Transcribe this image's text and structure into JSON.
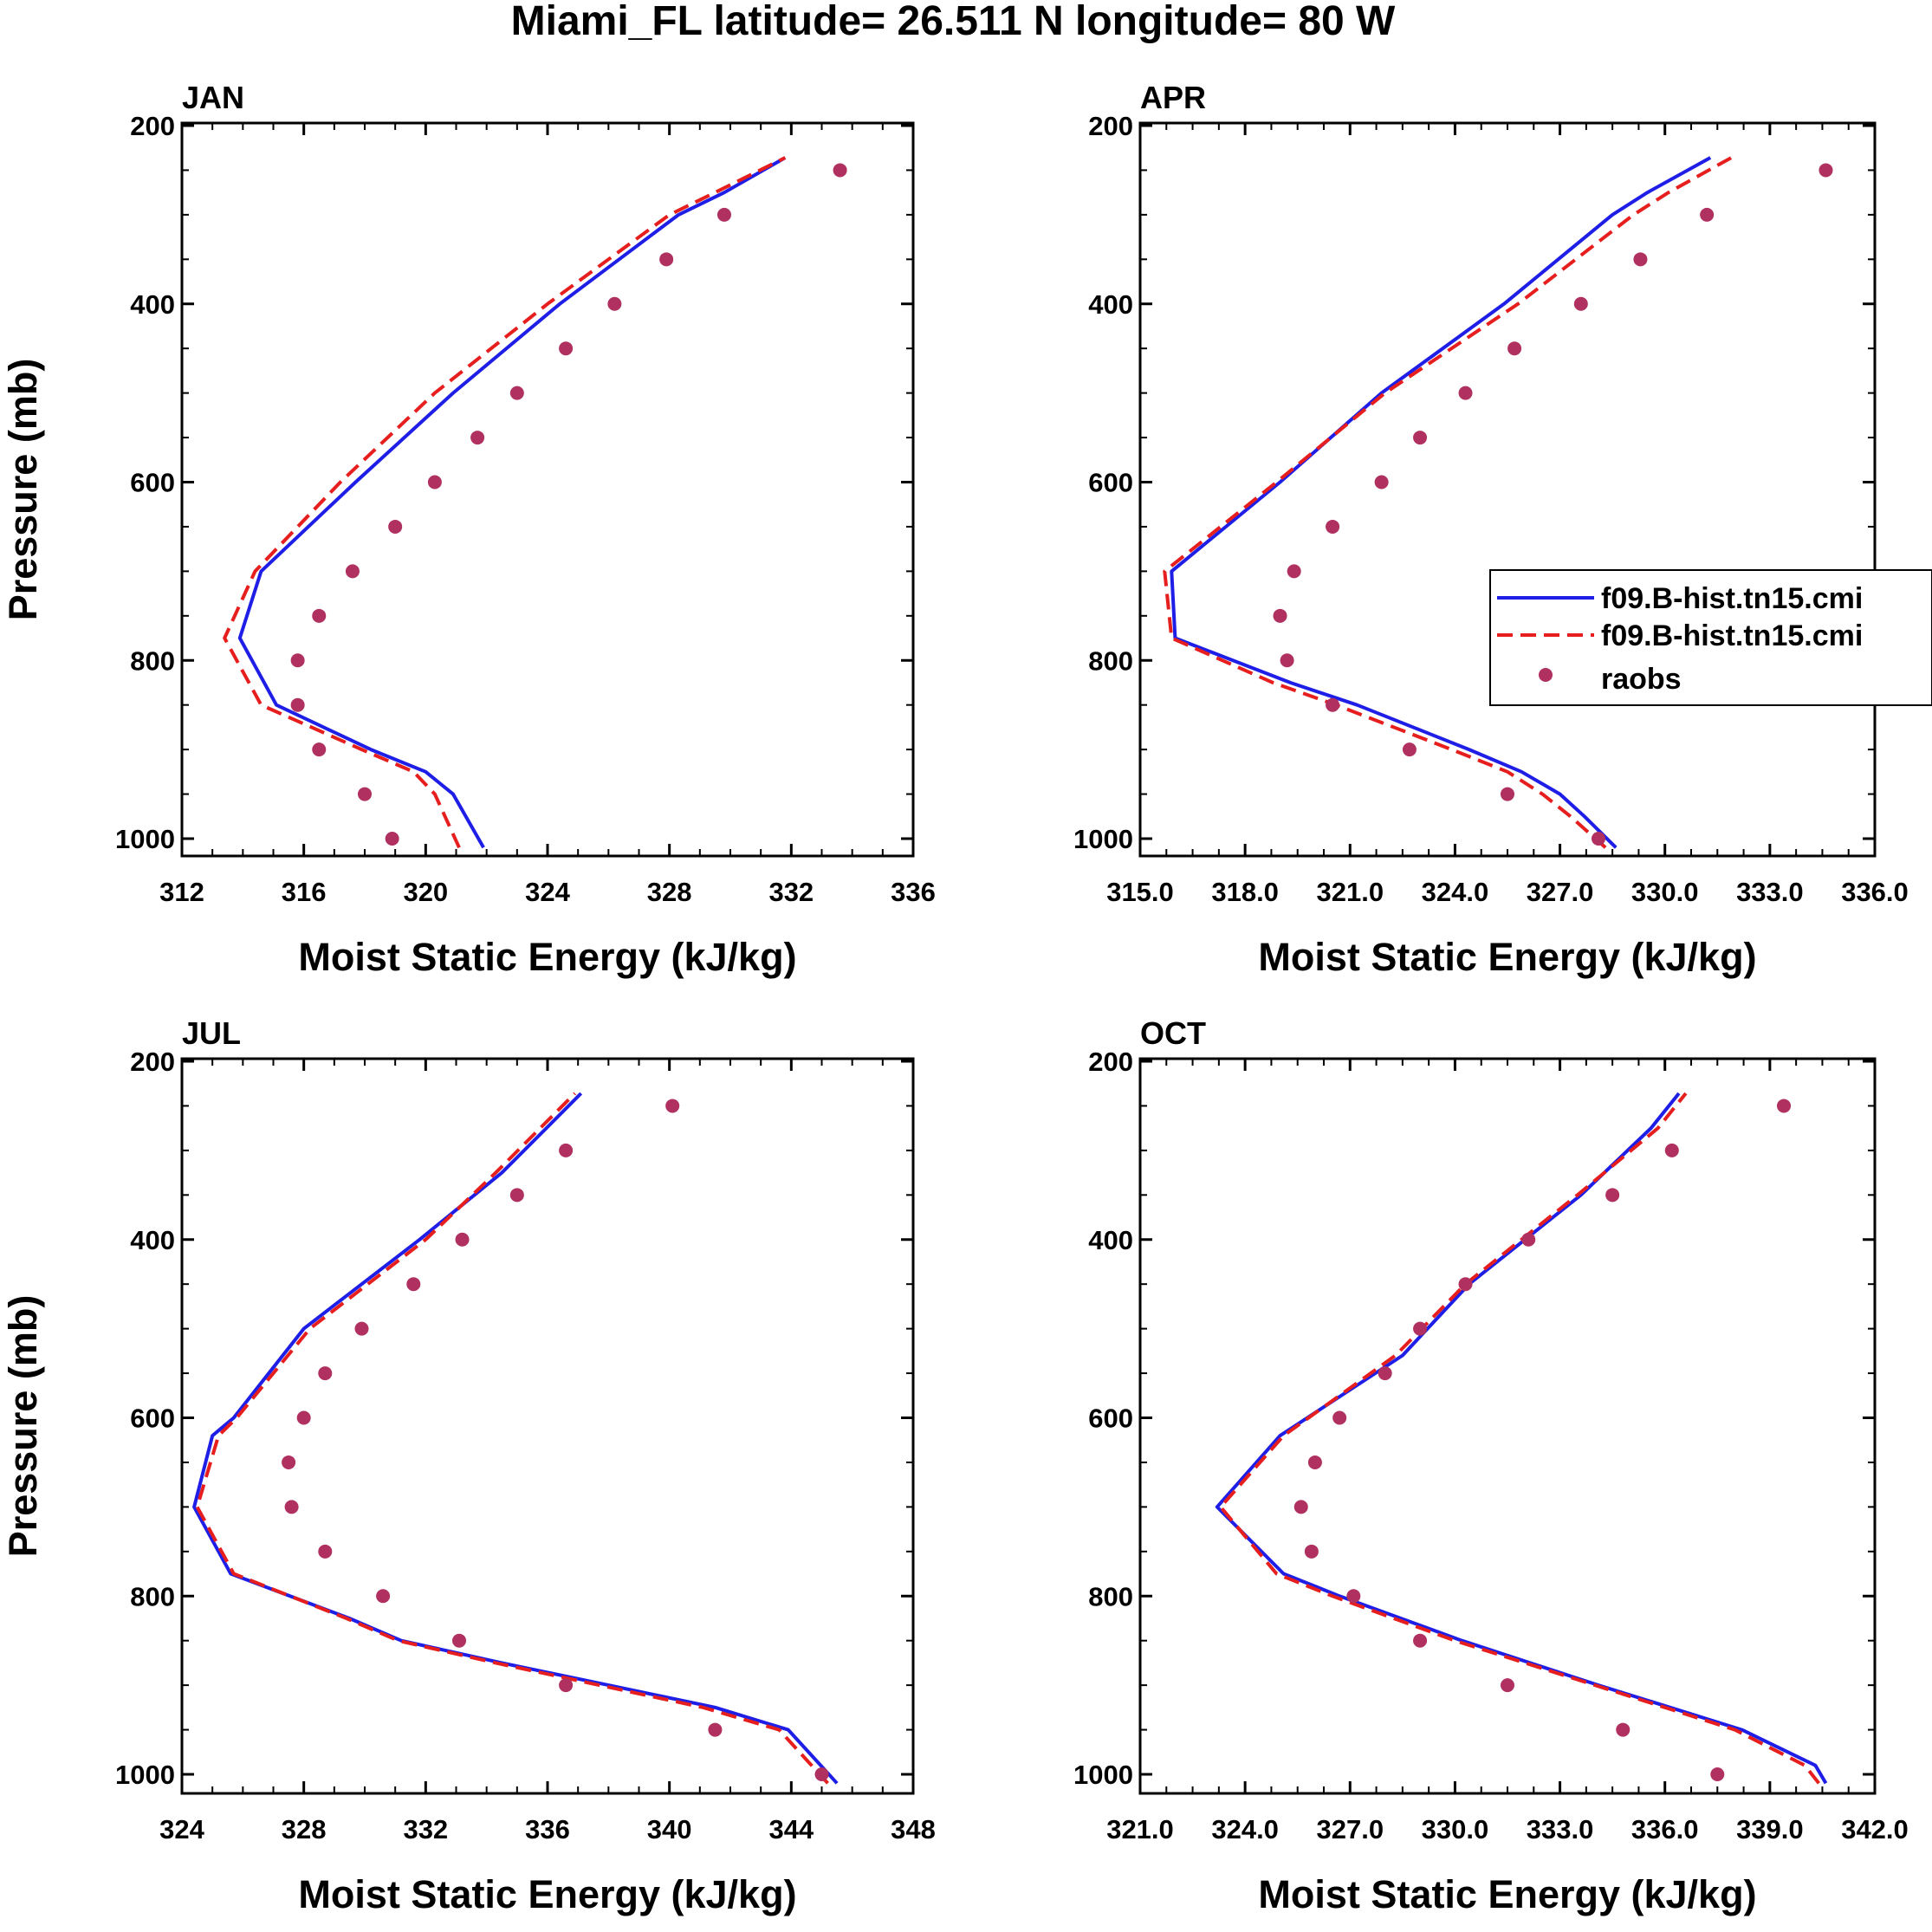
{
  "figure_title": "Miami_FL  latitude= 26.511 N longitude= 80 W",
  "colors": {
    "model1": "#1e1ee6",
    "model2": "#e61e1e",
    "raobs": "#b03060",
    "axis": "#000000"
  },
  "legend": {
    "entries": [
      "f09.B-hist.tn15.cmi",
      "f09.B-hist.tn15.cmi",
      "raobs"
    ],
    "location": "upper-right of APR panel"
  },
  "chart_data": [
    {
      "type": "line",
      "title": "JAN",
      "xlabel": "Moist Static Energy (kJ/kg)",
      "ylabel": "Pressure (mb)",
      "xlim": [
        312,
        336
      ],
      "ylim": [
        1020,
        200
      ],
      "x_ticks": [
        "312",
        "316",
        "320",
        "324",
        "328",
        "332",
        "336"
      ],
      "y_ticks": [
        "200",
        "400",
        "600",
        "800",
        "1000"
      ],
      "pressure": [
        1010,
        950,
        925,
        900,
        850,
        775,
        700,
        600,
        500,
        400,
        300,
        275,
        236
      ],
      "series": [
        {
          "name": "f09.B-hist.tn15.cmi",
          "style": "solid",
          "values": [
            321.9,
            320.9,
            320.0,
            318.2,
            315.1,
            313.9,
            314.6,
            317.7,
            320.9,
            324.4,
            328.3,
            329.8,
            331.8
          ]
        },
        {
          "name": "f09.B-hist.tn15.cmi",
          "style": "dashed",
          "values": [
            321.1,
            320.3,
            319.6,
            317.9,
            314.6,
            313.4,
            314.4,
            317.2,
            320.3,
            324.0,
            328.0,
            329.5,
            331.8
          ]
        }
      ],
      "raobs": {
        "pressure": [
          250,
          300,
          350,
          400,
          450,
          500,
          550,
          600,
          650,
          700,
          750,
          800,
          850,
          900,
          950,
          1000
        ],
        "values": [
          333.6,
          329.8,
          327.9,
          326.2,
          324.6,
          323.0,
          321.7,
          320.3,
          319.0,
          317.6,
          316.5,
          315.8,
          315.8,
          316.5,
          318.0,
          318.9
        ]
      }
    },
    {
      "type": "line",
      "title": "APR",
      "xlabel": "Moist Static Energy (kJ/kg)",
      "ylabel": "",
      "xlim": [
        315.0,
        336.0
      ],
      "ylim": [
        1020,
        200
      ],
      "x_ticks": [
        "315.0",
        "318.0",
        "321.0",
        "324.0",
        "327.0",
        "330.0",
        "333.0",
        "336.0"
      ],
      "y_ticks": [
        "200",
        "400",
        "600",
        "800",
        "1000"
      ],
      "pressure": [
        1010,
        975,
        950,
        925,
        900,
        850,
        825,
        775,
        700,
        600,
        500,
        400,
        300,
        275,
        236
      ],
      "series": [
        {
          "name": "f09.B-hist.tn15.cmi",
          "style": "solid",
          "values": [
            328.6,
            327.7,
            327.0,
            325.9,
            324.4,
            321.2,
            319.3,
            316.0,
            315.9,
            319.0,
            321.9,
            325.4,
            328.5,
            329.5,
            331.3
          ]
        },
        {
          "name": "f09.B-hist.tn15.cmi",
          "style": "dashed",
          "values": [
            328.3,
            327.3,
            326.5,
            325.5,
            323.9,
            320.6,
            318.8,
            315.9,
            315.7,
            318.9,
            322.0,
            325.8,
            329.1,
            330.1,
            331.9
          ]
        }
      ],
      "raobs": {
        "pressure": [
          250,
          300,
          350,
          400,
          450,
          500,
          550,
          600,
          650,
          700,
          750,
          800,
          850,
          900,
          950,
          1000
        ],
        "values": [
          334.6,
          331.2,
          329.3,
          327.6,
          325.7,
          324.3,
          323.0,
          321.9,
          320.5,
          319.4,
          319.0,
          319.2,
          320.5,
          322.7,
          325.5,
          328.1
        ]
      }
    },
    {
      "type": "line",
      "title": "JUL",
      "xlabel": "Moist Static Energy (kJ/kg)",
      "ylabel": "Pressure (mb)",
      "xlim": [
        324,
        348
      ],
      "ylim": [
        1020,
        200
      ],
      "x_ticks": [
        "324",
        "328",
        "332",
        "336",
        "340",
        "344",
        "348"
      ],
      "y_ticks": [
        "200",
        "400",
        "600",
        "800",
        "1000"
      ],
      "pressure": [
        1010,
        950,
        925,
        900,
        875,
        850,
        825,
        775,
        700,
        620,
        600,
        500,
        400,
        325,
        236
      ],
      "series": [
        {
          "name": "f09.B-hist.tn15.cmi",
          "style": "solid",
          "values": [
            345.5,
            343.9,
            341.5,
            338.0,
            334.5,
            331.2,
            329.5,
            325.6,
            324.4,
            325.0,
            325.7,
            328.0,
            331.8,
            334.5,
            337.1
          ]
        },
        {
          "name": "f09.B-hist.tn15.cmi",
          "style": "dashed",
          "values": [
            345.2,
            343.6,
            341.1,
            337.7,
            334.3,
            331.1,
            329.4,
            325.7,
            324.5,
            325.2,
            325.8,
            328.2,
            332.0,
            334.3,
            336.9
          ]
        }
      ],
      "raobs": {
        "pressure": [
          250,
          300,
          350,
          400,
          450,
          500,
          550,
          600,
          650,
          700,
          750,
          800,
          850,
          900,
          950,
          1000
        ],
        "values": [
          340.1,
          336.6,
          335.0,
          333.2,
          331.6,
          329.9,
          328.7,
          328.0,
          327.5,
          327.6,
          328.7,
          330.6,
          333.1,
          336.6,
          341.5,
          345.0
        ]
      }
    },
    {
      "type": "line",
      "title": "OCT",
      "xlabel": "Moist Static Energy (kJ/kg)",
      "ylabel": "",
      "xlim": [
        321.0,
        342.0
      ],
      "ylim": [
        1020,
        200
      ],
      "x_ticks": [
        "321.0",
        "324.0",
        "327.0",
        "330.0",
        "333.0",
        "336.0",
        "339.0",
        "342.0"
      ],
      "y_ticks": [
        "200",
        "400",
        "600",
        "800",
        "1000"
      ],
      "pressure": [
        1010,
        990,
        950,
        900,
        850,
        800,
        775,
        700,
        620,
        530,
        450,
        350,
        275,
        236
      ],
      "series": [
        {
          "name": "f09.B-hist.tn15.cmi",
          "style": "solid",
          "values": [
            340.6,
            340.3,
            338.2,
            334.1,
            330.2,
            326.7,
            325.1,
            323.2,
            325.0,
            328.5,
            330.4,
            333.6,
            335.6,
            336.4
          ]
        },
        {
          "name": "f09.B-hist.tn15.cmi",
          "style": "dashed",
          "values": [
            340.4,
            340.0,
            338.0,
            334.0,
            330.0,
            326.5,
            324.9,
            323.3,
            325.1,
            328.3,
            330.3,
            333.5,
            335.8,
            336.6
          ]
        }
      ],
      "raobs": {
        "pressure": [
          250,
          300,
          350,
          400,
          450,
          500,
          550,
          600,
          650,
          700,
          750,
          800,
          850,
          900,
          950,
          1000
        ],
        "values": [
          339.4,
          336.2,
          334.5,
          332.1,
          330.3,
          329.0,
          328.0,
          326.7,
          326.0,
          325.6,
          325.9,
          327.1,
          329.0,
          331.5,
          334.8,
          337.5
        ]
      }
    }
  ]
}
